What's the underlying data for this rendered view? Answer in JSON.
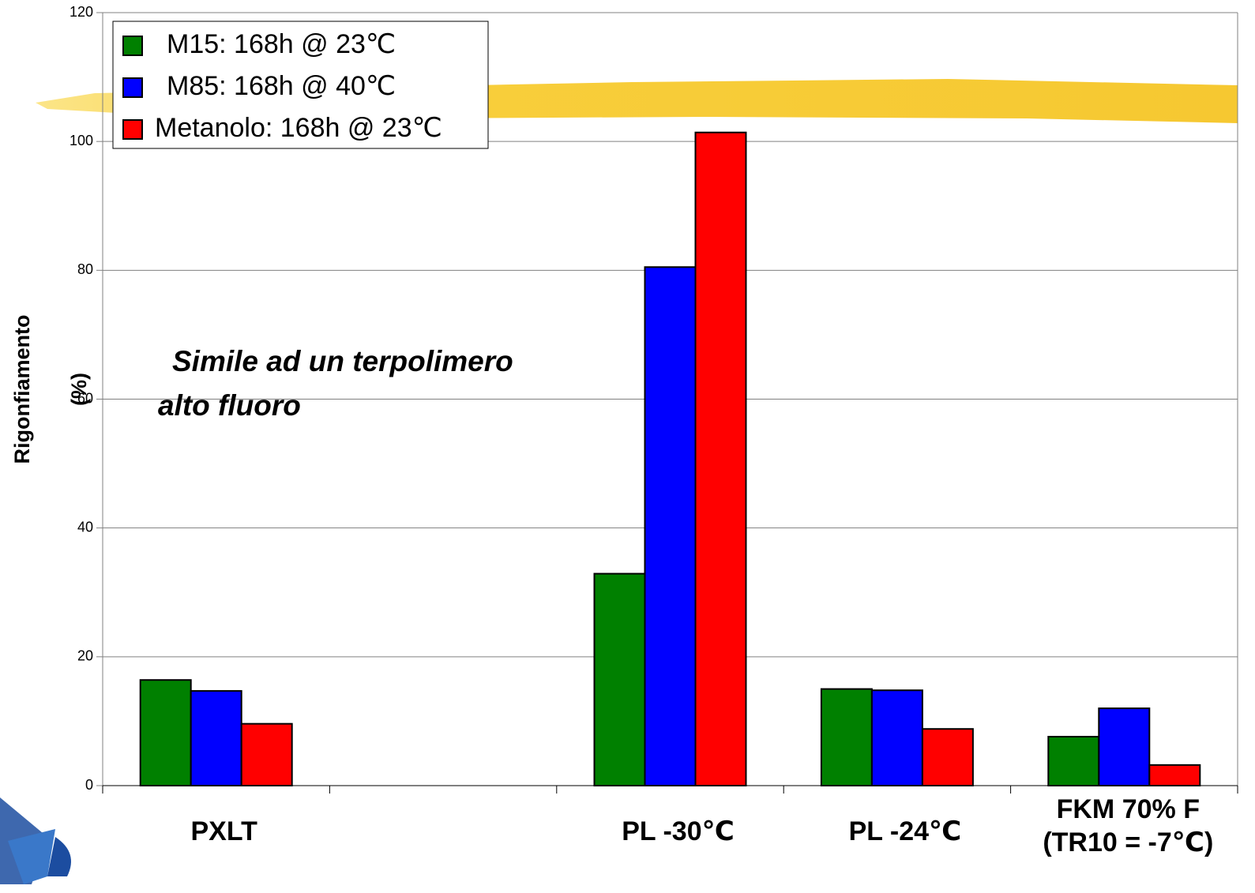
{
  "chart_data": {
    "type": "bar",
    "ylabel": [
      "Rigonfiamento",
      "(%)"
    ],
    "annotation": [
      "Simile ad un terpolimero",
      "alto fluoro"
    ],
    "categories": [
      [
        "PXLT"
      ],
      null,
      [
        "PL -30℃"
      ],
      [
        "PL -24℃"
      ],
      [
        "FKM 70% F",
        "(TR10 = -7℃)"
      ]
    ],
    "series": [
      {
        "name": "M15: 168h @ 23℃",
        "color": "#008000",
        "values": [
          16.4,
          null,
          32.9,
          15.0,
          7.6
        ]
      },
      {
        "name": "M85: 168h @ 40℃",
        "color": "#0000ff",
        "values": [
          14.7,
          null,
          80.5,
          14.8,
          12.0
        ]
      },
      {
        "name": "Metanolo: 168h @ 23℃",
        "color": "#ff0000",
        "values": [
          9.6,
          null,
          101.4,
          8.8,
          3.2
        ]
      }
    ],
    "ylim": [
      0,
      120
    ],
    "yticks": [
      0,
      20,
      40,
      60,
      80,
      100,
      120
    ],
    "grid": true,
    "legend": "upper left"
  }
}
